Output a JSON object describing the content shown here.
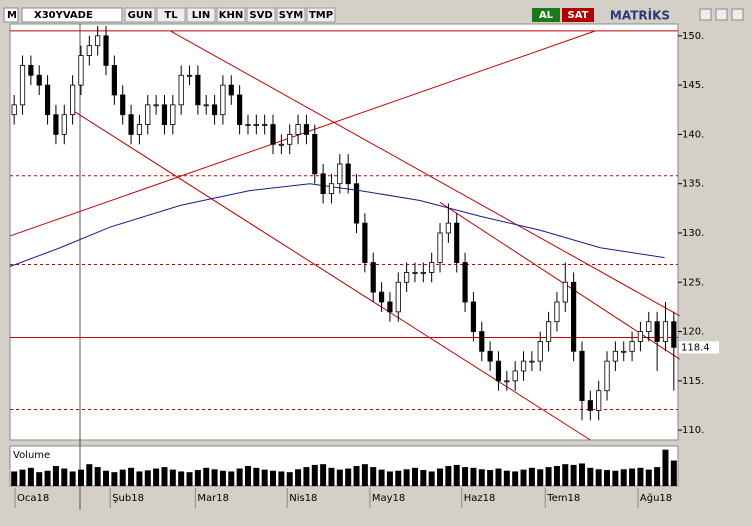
{
  "toolbar": {
    "symbol": "X30YVADE",
    "buttons": [
      "GUN",
      "TL",
      "LIN",
      "KHN",
      "SVD",
      "SYM",
      "TMP"
    ],
    "buy": "AL",
    "sell": "SAT",
    "brand": "MATRİKS"
  },
  "chart_data": {
    "type": "candlestick",
    "volume_label": "Volume",
    "open": [
      142,
      143,
      147,
      146,
      145,
      142,
      140,
      142,
      145,
      148,
      149,
      150,
      147,
      144,
      142,
      140,
      141,
      143,
      143,
      141,
      143,
      146,
      146,
      143,
      143,
      142,
      145,
      144,
      141,
      141,
      141,
      141,
      139,
      139,
      140,
      141,
      140,
      136,
      134,
      135,
      137,
      135,
      131,
      127,
      124,
      123,
      122,
      125,
      126,
      126,
      126,
      127,
      130,
      131,
      127,
      123,
      120,
      118,
      117,
      115,
      115,
      116,
      117,
      117,
      119,
      121,
      123,
      125,
      118,
      113,
      112,
      114,
      117,
      118,
      118,
      119,
      120,
      121,
      119,
      121
    ],
    "high": [
      144,
      148,
      148,
      147,
      146,
      143,
      143,
      146,
      149,
      150,
      151,
      151,
      148,
      145,
      143,
      142,
      144,
      144,
      144,
      144,
      147,
      147,
      147,
      144,
      144,
      146,
      146,
      145,
      142,
      142,
      142,
      142,
      140,
      141,
      142,
      142,
      141,
      137,
      136,
      138,
      138,
      136,
      132,
      128,
      125,
      124,
      126,
      127,
      127,
      127,
      128,
      131,
      133,
      132,
      128,
      124,
      121,
      119,
      118,
      116,
      117,
      118,
      118,
      120,
      122,
      124,
      127,
      126,
      119,
      114,
      115,
      118,
      119,
      119,
      120,
      121,
      122,
      122,
      123,
      122
    ],
    "low": [
      141,
      142,
      145,
      144,
      141,
      139,
      139,
      141,
      144,
      147,
      148,
      146,
      143,
      141,
      139,
      139,
      140,
      142,
      140,
      140,
      142,
      145,
      142,
      142,
      141,
      141,
      143,
      140,
      140,
      140,
      140,
      138,
      138,
      138,
      139,
      139,
      135,
      133,
      133,
      134,
      134,
      130,
      126,
      123,
      122,
      121,
      121,
      124,
      125,
      125,
      125,
      126,
      129,
      126,
      122,
      119,
      117,
      116,
      114,
      114,
      114,
      115,
      116,
      116,
      118,
      120,
      122,
      117,
      111,
      111,
      111,
      113,
      116,
      117,
      117,
      118,
      119,
      116,
      118,
      114
    ],
    "close": [
      143,
      147,
      146,
      145,
      142,
      140,
      142,
      145,
      148,
      149,
      150,
      147,
      144,
      142,
      140,
      141,
      143,
      143,
      141,
      143,
      146,
      146,
      143,
      143,
      142,
      145,
      144,
      141,
      141,
      141,
      141,
      139,
      139,
      140,
      141,
      140,
      136,
      134,
      135,
      137,
      135,
      131,
      127,
      124,
      123,
      122,
      125,
      126,
      126,
      126,
      127,
      130,
      131,
      127,
      123,
      120,
      118,
      117,
      115,
      115,
      116,
      117,
      117,
      119,
      121,
      123,
      125,
      118,
      113,
      112,
      114,
      117,
      118,
      118,
      119,
      120,
      121,
      119,
      121,
      118.4
    ],
    "volume": [
      40,
      45,
      50,
      38,
      42,
      55,
      48,
      40,
      45,
      60,
      52,
      42,
      38,
      45,
      50,
      40,
      43,
      48,
      52,
      45,
      40,
      38,
      44,
      50,
      46,
      42,
      40,
      48,
      55,
      50,
      45,
      42,
      40,
      38,
      46,
      52,
      58,
      60,
      50,
      45,
      48,
      55,
      60,
      52,
      45,
      40,
      42,
      46,
      50,
      44,
      40,
      48,
      55,
      58,
      52,
      50,
      46,
      44,
      48,
      42,
      40,
      45,
      50,
      46,
      52,
      55,
      60,
      58,
      62,
      50,
      46,
      44,
      42,
      46,
      48,
      50,
      45,
      52,
      100,
      70
    ],
    "volume_ylim": [
      0,
      110
    ],
    "xlim": [
      -0.5,
      79.5
    ],
    "xticks": [
      {
        "value": 0.1,
        "label": "Oca18"
      },
      {
        "value": 11.5,
        "label": "Şub18"
      },
      {
        "value": 21.7,
        "label": "Mar18"
      },
      {
        "value": 32.7,
        "label": "Nis18"
      },
      {
        "value": 42.6,
        "label": "May18"
      },
      {
        "value": 53.6,
        "label": "Haz18"
      },
      {
        "value": 63.6,
        "label": "Tem18"
      },
      {
        "value": 74.7,
        "label": "Ağu18"
      }
    ],
    "ylim": [
      109,
      151.2
    ],
    "yticks": [
      {
        "value": 110,
        "label": "110."
      },
      {
        "value": 115,
        "label": "115."
      },
      {
        "value": 120,
        "label": "120."
      },
      {
        "value": 125,
        "label": "125."
      },
      {
        "value": 130,
        "label": "130."
      },
      {
        "value": 135,
        "label": "135."
      },
      {
        "value": 140,
        "label": "140."
      },
      {
        "value": 145,
        "label": "145."
      },
      {
        "value": 150,
        "label": "150."
      }
    ],
    "last_price": 118.4,
    "hlines": [
      {
        "value": 150.5,
        "dashed": false
      },
      {
        "value": 135.8,
        "dashed": true
      },
      {
        "value": 126.8,
        "dashed": true
      },
      {
        "value": 119.4,
        "dashed": false
      },
      {
        "value": 112.1,
        "dashed": true
      }
    ],
    "trendlines": [
      {
        "x": [
          -0.5,
          69.6
        ],
        "y": [
          129.7,
          150.5
        ]
      },
      {
        "x": [
          18.7,
          79.7
        ],
        "y": [
          150.5,
          121.6
        ]
      },
      {
        "x": [
          6.7,
          69
        ],
        "y": [
          142.6,
          109
        ]
      },
      {
        "x": [
          51,
          79.7
        ],
        "y": [
          133.1,
          117.2
        ]
      }
    ],
    "moving_average": {
      "color": "#1a1a8c",
      "x": [
        -0.5,
        5.5,
        11.5,
        19.9,
        28.2,
        35.4,
        41.4,
        48.6,
        55.8,
        62.9,
        70.2,
        77.9
      ],
      "y": [
        126.6,
        128.5,
        130.6,
        132.8,
        134.3,
        135,
        134.3,
        133.3,
        131.7,
        130.3,
        128.5,
        127.5
      ]
    },
    "line_color": "#c00000"
  }
}
